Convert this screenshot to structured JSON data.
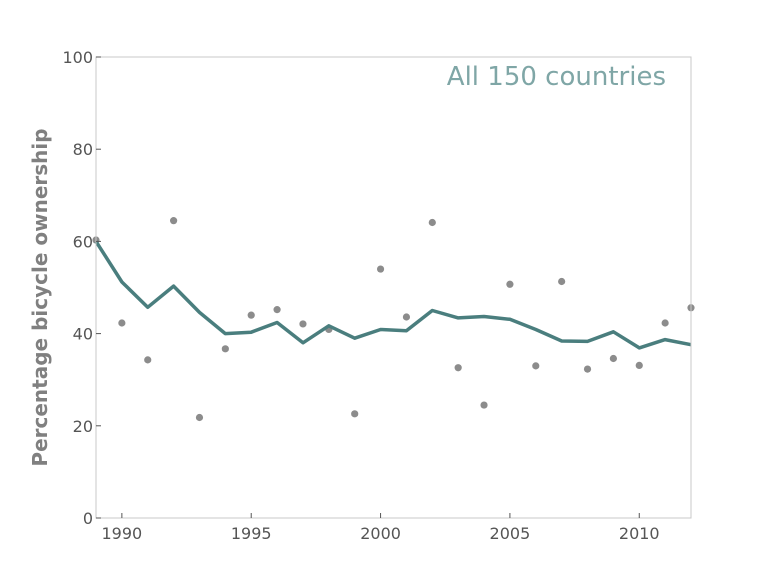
{
  "chart_data": {
    "type": "line",
    "title": "",
    "xlabel": "",
    "ylabel": "Percentage bicycle ownership",
    "annotation": "All 150 countries",
    "xlim": [
      1989,
      2012
    ],
    "ylim": [
      0,
      100
    ],
    "x_ticks": [
      "1990",
      "1995",
      "2000",
      "2005",
      "2010"
    ],
    "y_ticks": [
      "0",
      "20",
      "40",
      "60",
      "80",
      "100"
    ],
    "grid": false,
    "legend": "none",
    "colors": {
      "line": "#4a7e7e",
      "points": "#8c8c8c",
      "annotation": "#7fa6a6",
      "axes": "#c8c8c8"
    },
    "series": [
      {
        "kind": "scatter",
        "x": [
          1989,
          1990,
          1991,
          1992,
          1993,
          1994,
          1995,
          1996,
          1997,
          1998,
          1999,
          2000,
          2001,
          2002,
          2003,
          2004,
          2005,
          2006,
          2007,
          2008,
          2009,
          2010,
          2011,
          2012
        ],
        "y": [
          60.3,
          42.3,
          34.3,
          64.5,
          21.8,
          36.7,
          44.0,
          45.2,
          42.1,
          40.9,
          22.6,
          54.0,
          43.6,
          64.1,
          32.6,
          24.5,
          50.7,
          33.0,
          51.3,
          32.3,
          34.6,
          33.1,
          42.3,
          45.6
        ]
      },
      {
        "kind": "line",
        "x": [
          1989,
          1990,
          1991,
          1992,
          1993,
          1994,
          1995,
          1996,
          1997,
          1998,
          1999,
          2000,
          2001,
          2002,
          2003,
          2004,
          2005,
          2006,
          2007,
          2008,
          2009,
          2010,
          2011,
          2012
        ],
        "y": [
          60.0,
          51.2,
          45.7,
          50.3,
          44.6,
          40.0,
          40.3,
          42.4,
          38.0,
          41.7,
          39.0,
          40.9,
          40.6,
          45.0,
          43.4,
          43.7,
          43.1,
          40.9,
          38.4,
          38.3,
          40.4,
          36.9,
          38.7,
          37.6
        ]
      }
    ]
  }
}
